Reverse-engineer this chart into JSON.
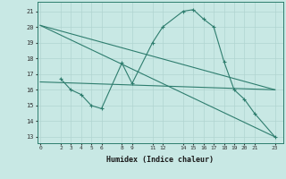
{
  "line1_x": [
    0,
    23
  ],
  "line1_y": [
    20.1,
    16.0
  ],
  "line2_x": [
    0,
    23
  ],
  "line2_y": [
    20.1,
    13.0
  ],
  "line3_x": [
    2,
    3,
    4,
    5,
    6,
    8,
    9,
    11,
    12,
    14,
    15,
    16,
    17,
    18,
    19,
    20,
    21,
    23
  ],
  "line3_y": [
    16.7,
    16.0,
    15.7,
    15.0,
    14.8,
    17.7,
    16.4,
    19.0,
    20.0,
    21.0,
    21.1,
    20.5,
    20.0,
    17.8,
    16.0,
    15.4,
    14.5,
    13.0
  ],
  "line4_x": [
    0,
    23
  ],
  "line4_y": [
    16.5,
    16.0
  ],
  "line_color": "#2e7d6e",
  "bg_color": "#c8e8e4",
  "grid_color": "#b0d4d0",
  "xlabel": "Humidex (Indice chaleur)",
  "xticks": [
    0,
    2,
    3,
    4,
    5,
    6,
    8,
    9,
    11,
    12,
    14,
    15,
    16,
    17,
    18,
    19,
    20,
    21,
    23
  ],
  "yticks": [
    13,
    14,
    15,
    16,
    17,
    18,
    19,
    20,
    21
  ],
  "ylim": [
    12.6,
    21.6
  ],
  "xlim": [
    -0.3,
    23.8
  ]
}
